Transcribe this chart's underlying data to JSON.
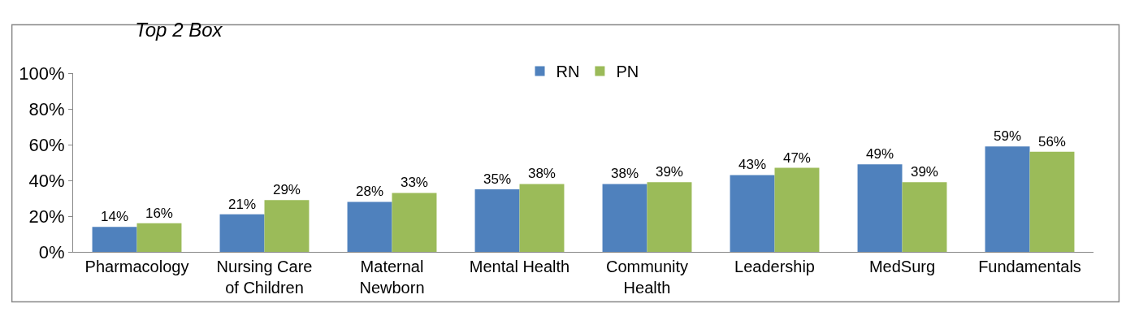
{
  "chart_data": {
    "type": "bar",
    "title": "Top 2 Box",
    "categories": [
      "Pharmacology",
      "Nursing Care\nof Children",
      "Maternal\nNewborn",
      "Mental Health",
      "Community\nHealth",
      "Leadership",
      "MedSurg",
      "Fundamentals"
    ],
    "series": [
      {
        "name": "RN",
        "color": "#4f81bd",
        "values": [
          14,
          21,
          28,
          35,
          38,
          43,
          49,
          59
        ],
        "value_labels": [
          "14%",
          "21%",
          "28%",
          "35%",
          "38%",
          "43%",
          "49%",
          "59%"
        ]
      },
      {
        "name": "PN",
        "color": "#9bbb59",
        "values": [
          16,
          29,
          33,
          38,
          39,
          47,
          39,
          56
        ],
        "value_labels": [
          "16%",
          "29%",
          "33%",
          "38%",
          "39%",
          "47%",
          "39%",
          "56%"
        ]
      }
    ],
    "ylim": [
      0,
      100
    ],
    "yticks": [
      {
        "value": 0,
        "label": "0%"
      },
      {
        "value": 20,
        "label": "20%"
      },
      {
        "value": 40,
        "label": "40%"
      },
      {
        "value": 60,
        "label": "60%"
      },
      {
        "value": 80,
        "label": "80%"
      },
      {
        "value": 100,
        "label": "100%"
      }
    ],
    "grid": false,
    "legend": "top"
  }
}
